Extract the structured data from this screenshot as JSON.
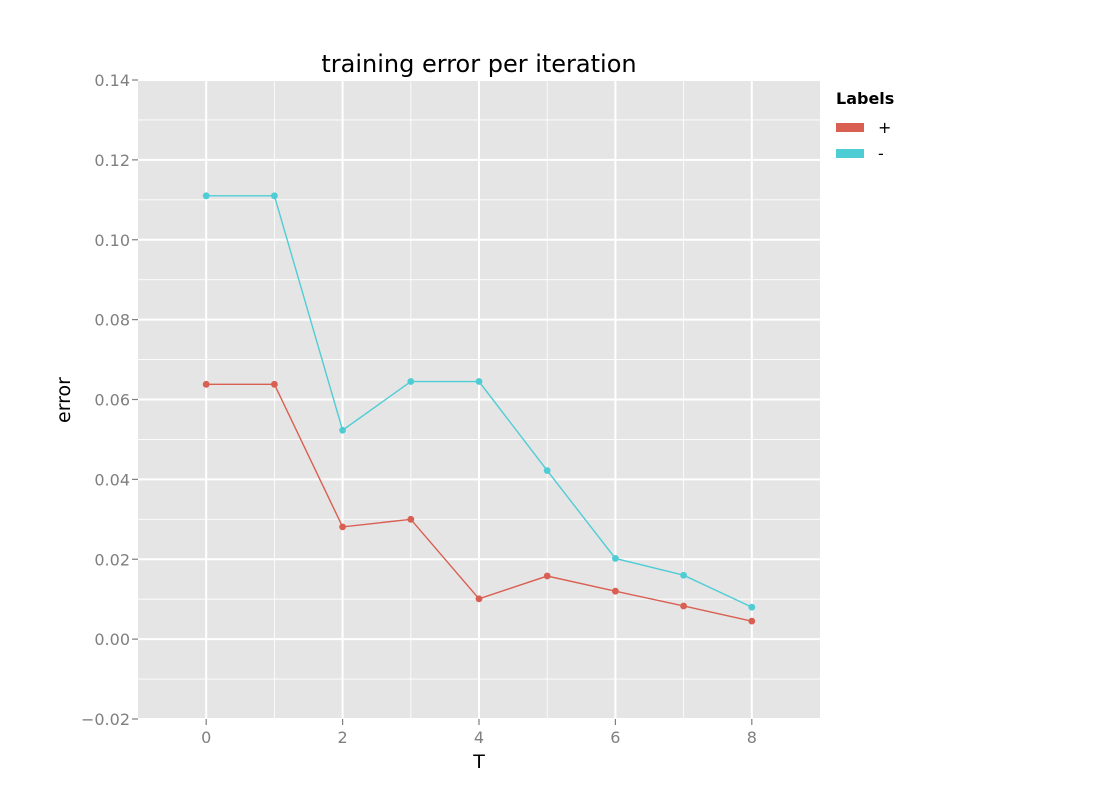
{
  "chart_data": {
    "type": "line",
    "title": "training error per iteration",
    "xlabel": "T",
    "ylabel": "error",
    "xlim": [
      -1,
      9
    ],
    "ylim": [
      -0.02,
      0.14
    ],
    "x_ticks": [
      0,
      2,
      4,
      6,
      8
    ],
    "x_tick_labels": [
      "0",
      "2",
      "4",
      "6",
      "8"
    ],
    "y_ticks": [
      -0.02,
      0.0,
      0.02,
      0.04,
      0.06,
      0.08,
      0.1,
      0.12,
      0.14
    ],
    "y_tick_labels": [
      "−0.02",
      "0.00",
      "0.02",
      "0.04",
      "0.06",
      "0.08",
      "0.10",
      "0.12",
      "0.14"
    ],
    "grid": true,
    "legend": {
      "title": "Labels",
      "placement": "right"
    },
    "x": [
      0,
      1,
      2,
      3,
      4,
      5,
      6,
      7,
      8
    ],
    "series": [
      {
        "name": "+",
        "color": "#d95f52",
        "values": [
          0.0638,
          0.0638,
          0.0281,
          0.03,
          0.0101,
          0.0158,
          0.012,
          0.0083,
          0.0045
        ]
      },
      {
        "name": "-",
        "color": "#4fcdd5",
        "values": [
          0.111,
          0.111,
          0.0523,
          0.0645,
          0.0645,
          0.0422,
          0.0202,
          0.016,
          0.008
        ]
      }
    ],
    "panel_background": "#e5e5e5",
    "grid_color": "#ffffff"
  }
}
